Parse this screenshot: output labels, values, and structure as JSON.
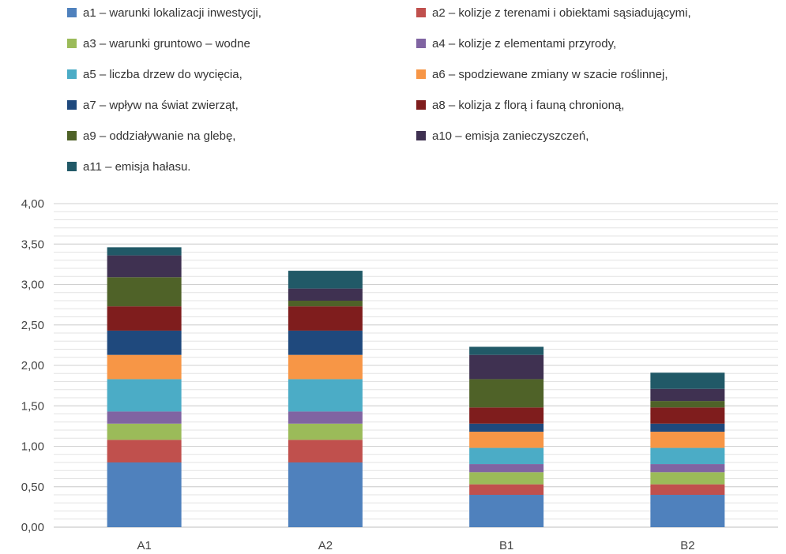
{
  "chart_data": {
    "type": "bar",
    "stacked": true,
    "title": "",
    "xlabel": "",
    "ylabel": "",
    "categories": [
      "A1",
      "A2",
      "B1",
      "B2"
    ],
    "ylim": [
      0,
      4
    ],
    "yticks": [
      "0,00",
      "0,50",
      "1,00",
      "1,50",
      "2,00",
      "2,50",
      "3,00",
      "3,50",
      "4,00"
    ],
    "ytick_values": [
      0,
      0.5,
      1,
      1.5,
      2,
      2.5,
      3,
      3.5,
      4
    ],
    "grid": true,
    "legend_position": "top",
    "series": [
      {
        "name": "a1 – warunki lokalizacji inwestycji,",
        "color": "#4f81bd",
        "values": [
          0.8,
          0.8,
          0.4,
          0.4
        ]
      },
      {
        "name": "a2 – kolizje z terenami i obiektami sąsiadującymi,",
        "color": "#c0504d",
        "values": [
          0.28,
          0.28,
          0.13,
          0.13
        ]
      },
      {
        "name": "a3 – warunki gruntowo – wodne",
        "color": "#9bbb59",
        "values": [
          0.2,
          0.2,
          0.15,
          0.15
        ]
      },
      {
        "name": "a4 – kolizje z elementami przyrody,",
        "color": "#8064a2",
        "values": [
          0.15,
          0.15,
          0.1,
          0.1
        ]
      },
      {
        "name": "a5 – liczba drzew do wycięcia,",
        "color": "#4bacc6",
        "values": [
          0.4,
          0.4,
          0.2,
          0.2
        ]
      },
      {
        "name": "a6 – spodziewane zmiany w szacie roślinnej,",
        "color": "#f79646",
        "values": [
          0.3,
          0.3,
          0.2,
          0.2
        ]
      },
      {
        "name": "a7 – wpływ na świat zwierząt,",
        "color": "#1f497d",
        "values": [
          0.3,
          0.3,
          0.1,
          0.1
        ]
      },
      {
        "name": "a8 – kolizja z florą i fauną chronioną,",
        "color": "#7f1d1d",
        "values": [
          0.3,
          0.3,
          0.2,
          0.2
        ]
      },
      {
        "name": "a9 – oddziaływanie na glebę,",
        "color": "#4f6228",
        "values": [
          0.36,
          0.07,
          0.35,
          0.08
        ]
      },
      {
        "name": "a10 – emisja zanieczyszczeń,",
        "color": "#3f3151",
        "values": [
          0.27,
          0.15,
          0.3,
          0.15
        ]
      },
      {
        "name": "a11 – emisja hałasu.",
        "color": "#215967",
        "values": [
          0.1,
          0.22,
          0.1,
          0.2
        ]
      }
    ]
  }
}
